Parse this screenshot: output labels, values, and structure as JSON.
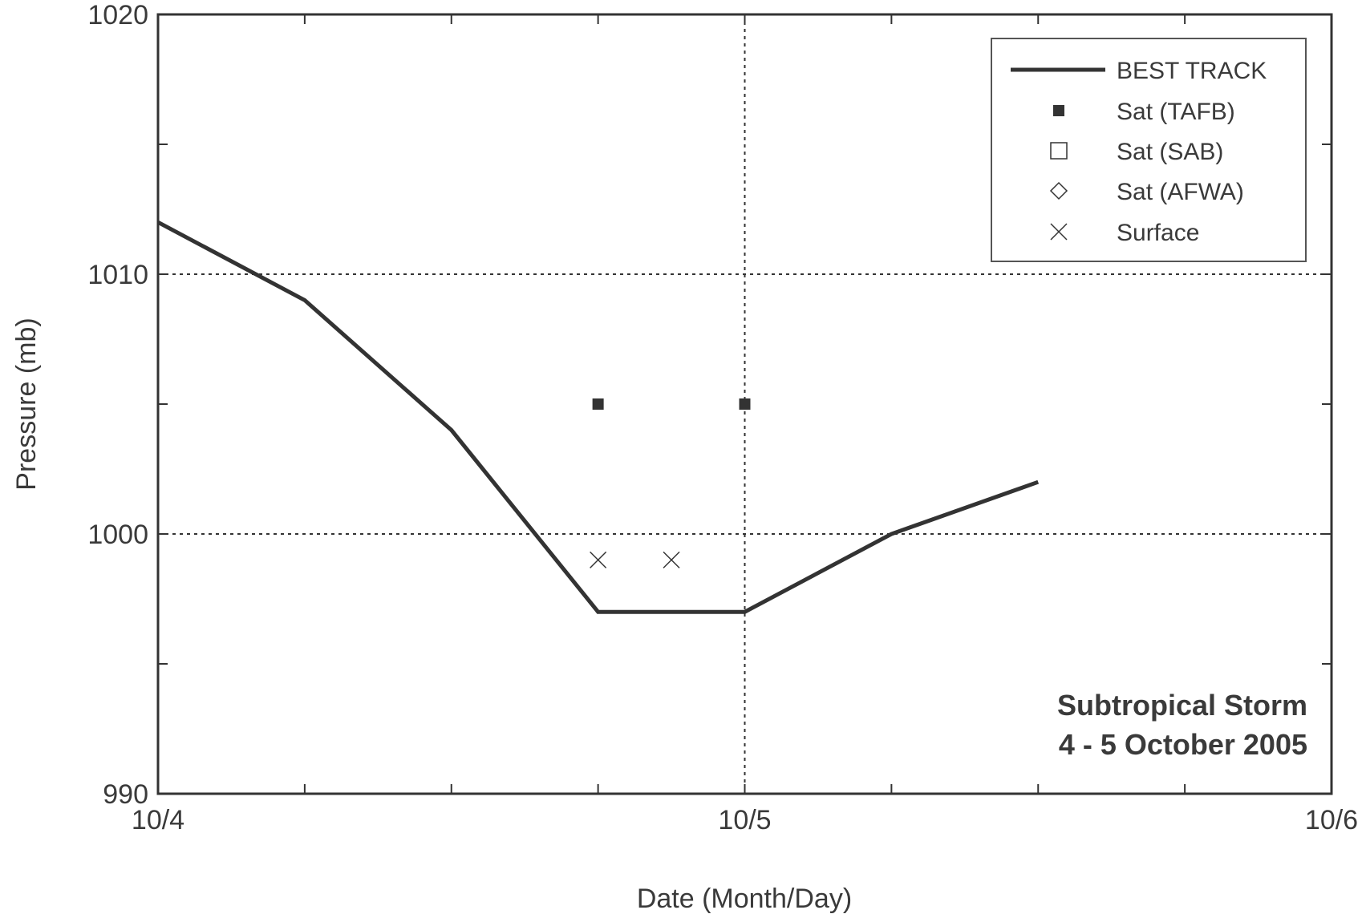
{
  "chart_data": {
    "type": "line",
    "xlabel": "Date (Month/Day)",
    "ylabel": "Pressure (mb)",
    "x_unit": "hours",
    "xlim": [
      "10/4 00Z",
      "10/6 00Z"
    ],
    "ylim": [
      990,
      1020
    ],
    "x_ticks": [
      {
        "value": 0,
        "label": "10/4"
      },
      {
        "value": 6,
        "label": ""
      },
      {
        "value": 12,
        "label": ""
      },
      {
        "value": 18,
        "label": ""
      },
      {
        "value": 24,
        "label": "10/5"
      },
      {
        "value": 30,
        "label": ""
      },
      {
        "value": 36,
        "label": ""
      },
      {
        "value": 42,
        "label": ""
      },
      {
        "value": 48,
        "label": "10/6"
      }
    ],
    "y_ticks": [
      {
        "value": 990,
        "label": "990"
      },
      {
        "value": 995,
        "label": ""
      },
      {
        "value": 1000,
        "label": "1000"
      },
      {
        "value": 1005,
        "label": ""
      },
      {
        "value": 1010,
        "label": "1010"
      },
      {
        "value": 1015,
        "label": ""
      },
      {
        "value": 1020,
        "label": "1020"
      }
    ],
    "grid": {
      "x": [
        24
      ],
      "y": [
        1000,
        1010,
        1020
      ],
      "style": "dotted"
    },
    "series": [
      {
        "name": "BEST TRACK",
        "marker": "line",
        "x": [
          0,
          6,
          12,
          18,
          24,
          30,
          36
        ],
        "y": [
          1012,
          1009,
          1004,
          997,
          997,
          1000,
          1002
        ]
      },
      {
        "name": "Sat (TAFB)",
        "marker": "filled-square",
        "x": [
          18,
          24
        ],
        "y": [
          1005,
          1005
        ]
      },
      {
        "name": "Sat (SAB)",
        "marker": "open-square",
        "x": [],
        "y": []
      },
      {
        "name": "Sat (AFWA)",
        "marker": "open-diamond",
        "x": [],
        "y": []
      },
      {
        "name": "Surface",
        "marker": "x",
        "x": [
          18,
          21
        ],
        "y": [
          999,
          999
        ]
      }
    ],
    "legend_position": "top-right",
    "annotation": [
      "Subtropical Storm",
      "4 - 5 October 2005"
    ],
    "colors": {
      "line": "#333333",
      "text": "#3a3a3a",
      "grid": "#333333",
      "legend_border": "#555555"
    }
  }
}
